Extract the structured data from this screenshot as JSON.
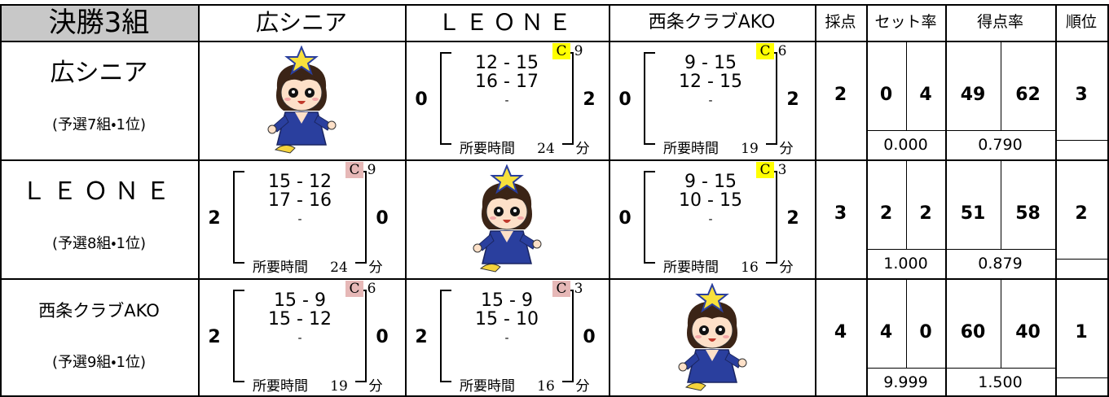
{
  "title": "決勝3組",
  "columns": [
    "広シニア",
    "ＬＥＯＮＥ",
    "西条クラブAKO"
  ],
  "headers": {
    "score": "採点",
    "set_rate": "セット率",
    "point_rate": "得点率",
    "rank": "順位"
  },
  "labels": {
    "time": "所要時間",
    "minute": "分"
  },
  "rows": [
    {
      "team": "広シニア",
      "note": "(予選7組・1位)",
      "matches": [
        null,
        {
          "left": "0",
          "games": [
            "12 - 15",
            "16 - 17",
            "-"
          ],
          "right": "2",
          "badge": {
            "letter": "C",
            "number": "9",
            "highlight": "#ffff00"
          },
          "time": "24"
        },
        {
          "left": "0",
          "games": [
            "9 - 15",
            "12 - 15",
            "-"
          ],
          "right": "2",
          "badge": {
            "letter": "C",
            "number": "6",
            "highlight": "#ffff00"
          },
          "time": "19"
        }
      ],
      "score": "2",
      "sets": [
        "0",
        "4"
      ],
      "set_rate": "0.000",
      "points": [
        "49",
        "62"
      ],
      "point_rate": "0.790",
      "rank": "3"
    },
    {
      "team": "ＬＥＯＮＥ",
      "note": "(予選8組・1位)",
      "matches": [
        {
          "left": "2",
          "games": [
            "15 - 12",
            "17 - 16",
            "-"
          ],
          "right": "0",
          "badge": {
            "letter": "C",
            "number": "9",
            "highlight": "#e6b8b7"
          },
          "time": "24"
        },
        null,
        {
          "left": "0",
          "games": [
            "9 - 15",
            "10 - 15",
            "-"
          ],
          "right": "2",
          "badge": {
            "letter": "C",
            "number": "3",
            "highlight": "#ffff00"
          },
          "time": "16"
        }
      ],
      "score": "3",
      "sets": [
        "2",
        "2"
      ],
      "set_rate": "1.000",
      "points": [
        "51",
        "58"
      ],
      "point_rate": "0.879",
      "rank": "2"
    },
    {
      "team": "西条クラブAKO",
      "note": "(予選9組・1位)",
      "matches": [
        {
          "left": "2",
          "games": [
            "15 - 9",
            "15 - 12",
            "-"
          ],
          "right": "0",
          "badge": {
            "letter": "C",
            "number": "6",
            "highlight": "#e6b8b7"
          },
          "time": "19"
        },
        {
          "left": "2",
          "games": [
            "15 - 9",
            "15 - 10",
            "-"
          ],
          "right": "0",
          "badge": {
            "letter": "C",
            "number": "3",
            "highlight": "#e6b8b7"
          },
          "time": "16"
        },
        null
      ],
      "score": "4",
      "sets": [
        "4",
        "0"
      ],
      "set_rate": "9.999",
      "points": [
        "60",
        "40"
      ],
      "point_rate": "1.500",
      "rank": "1"
    }
  ]
}
